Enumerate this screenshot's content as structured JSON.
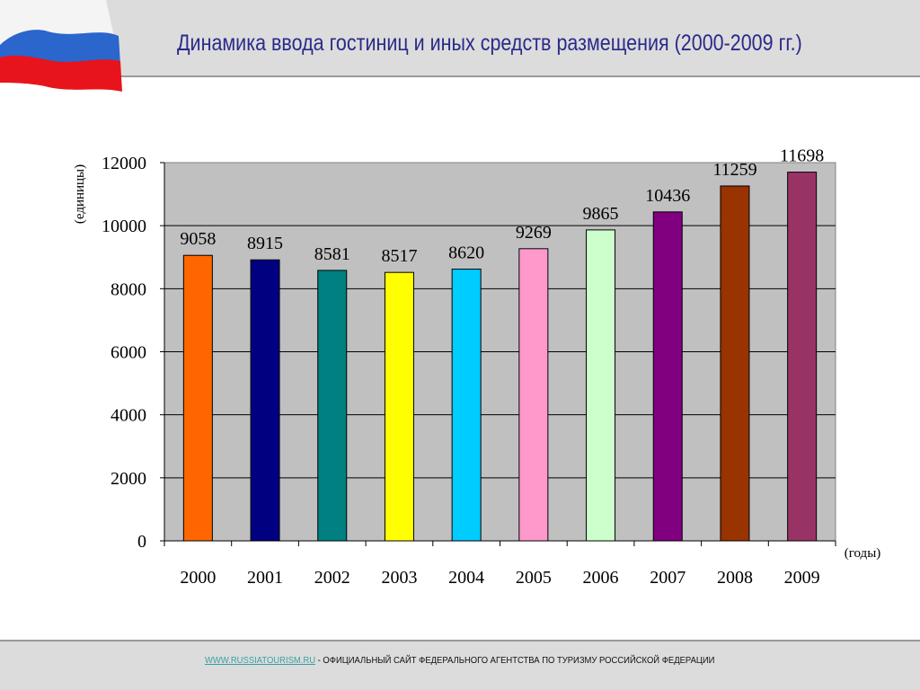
{
  "header": {
    "title": "Динамика ввода гостиниц и иных средств размещения (2000-2009 гг.)"
  },
  "footer": {
    "link": "WWW.RUSSIATOURISM.RU",
    "text": " - ОФИЦИАЛЬНЫЙ САЙТ ФЕДЕРАЛЬНОГО АГЕНТСТВА ПО ТУРИЗМУ РОССИЙСКОЙ ФЕДЕРАЦИИ"
  },
  "chart_data": {
    "type": "bar",
    "title": "Динамика ввода гостиниц и иных средств размещения (2000-2009 гг.)",
    "xlabel": "(годы)",
    "ylabel": "(единицы)",
    "categories": [
      "2000",
      "2001",
      "2002",
      "2003",
      "2004",
      "2005",
      "2006",
      "2007",
      "2008",
      "2009"
    ],
    "values": [
      9058,
      8915,
      8581,
      8517,
      8620,
      9269,
      9865,
      10436,
      11259,
      11698
    ],
    "colors": [
      "#ff6600",
      "#000080",
      "#008080",
      "#ffff00",
      "#00ccff",
      "#ff99cc",
      "#ccffcc",
      "#800080",
      "#993300",
      "#993366"
    ],
    "ylim": [
      0,
      12000
    ],
    "yticks": [
      0,
      2000,
      4000,
      6000,
      8000,
      10000,
      12000
    ],
    "grid": true,
    "plot_background": "#c0c0c0",
    "legend": "none"
  }
}
